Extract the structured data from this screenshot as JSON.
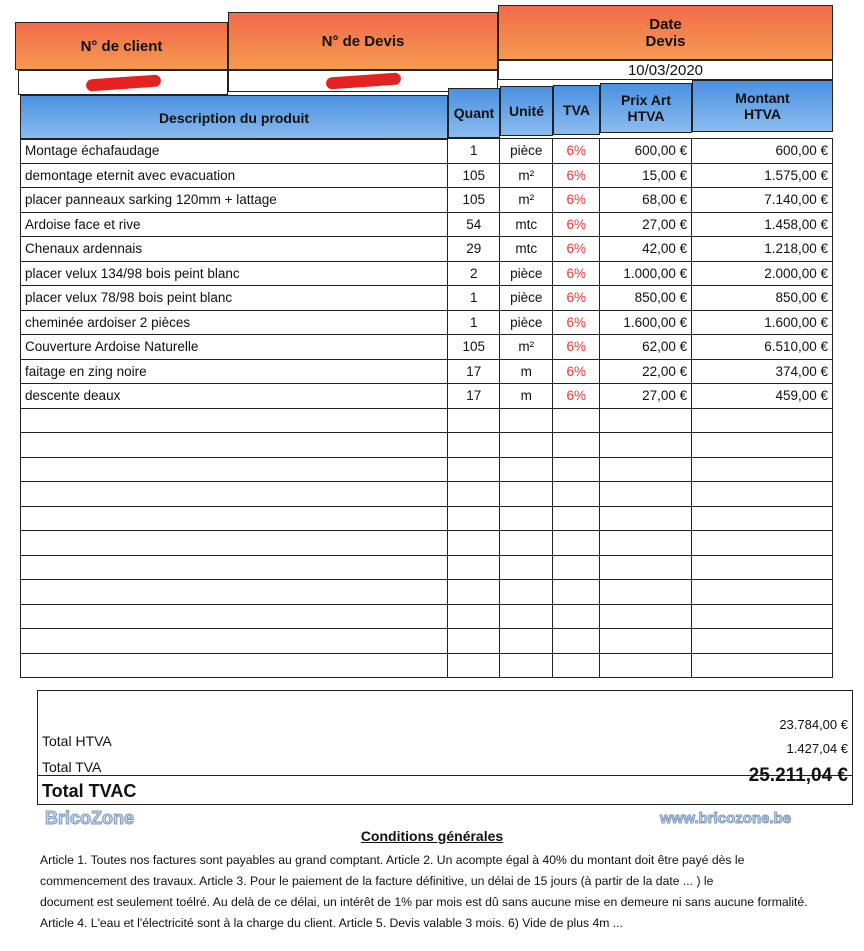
{
  "header": {
    "client_label": "N° de client",
    "devis_label": "N° de Devis",
    "date_label_1": "Date",
    "date_label_2": "Devis",
    "date_value": "10/03/2020"
  },
  "columns": {
    "description": "Description du produit",
    "quant": "Quant",
    "unite": "Unité",
    "tva": "TVA",
    "prix_1": "Prix Art",
    "prix_2": "HTVA",
    "montant_1": "Montant",
    "montant_2": "HTVA"
  },
  "items": [
    {
      "desc": "Montage échafaudage",
      "quant": "1",
      "unite": "pièce",
      "tva": "6%",
      "prix": "600,00 €",
      "montant": "600,00 €"
    },
    {
      "desc": "demontage eternit avec evacuation",
      "quant": "105",
      "unite": "m²",
      "tva": "6%",
      "prix": "15,00 €",
      "montant": "1.575,00 €"
    },
    {
      "desc": "placer panneaux sarking 120mm + lattage",
      "quant": "105",
      "unite": "m²",
      "tva": "6%",
      "prix": "68,00 €",
      "montant": "7.140,00 €"
    },
    {
      "desc": "Ardoise face et rive",
      "quant": "54",
      "unite": "mtc",
      "tva": "6%",
      "prix": "27,00 €",
      "montant": "1.458,00 €"
    },
    {
      "desc": "Chenaux ardennais",
      "quant": "29",
      "unite": "mtc",
      "tva": "6%",
      "prix": "42,00 €",
      "montant": "1.218,00 €"
    },
    {
      "desc": "placer velux 134/98 bois peint blanc",
      "quant": "2",
      "unite": "pièce",
      "tva": "6%",
      "prix": "1.000,00 €",
      "montant": "2.000,00 €"
    },
    {
      "desc": "placer velux 78/98 bois peint blanc",
      "quant": "1",
      "unite": "pièce",
      "tva": "6%",
      "prix": "850,00 €",
      "montant": "850,00 €"
    },
    {
      "desc": "cheminée ardoiser 2 pièces",
      "quant": "1",
      "unite": "pièce",
      "tva": "6%",
      "prix": "1.600,00 €",
      "montant": "1.600,00 €"
    },
    {
      "desc": "Couverture Ardoise Naturelle",
      "quant": "105",
      "unite": "m²",
      "tva": "6%",
      "prix": "62,00 €",
      "montant": "6.510,00 €"
    },
    {
      "desc": "faitage en zing noire",
      "quant": "17",
      "unite": "m",
      "tva": "6%",
      "prix": "22,00 €",
      "montant": "374,00 €"
    },
    {
      "desc": "descente deaux",
      "quant": "17",
      "unite": "m",
      "tva": "6%",
      "prix": "27,00 €",
      "montant": "459,00 €"
    }
  ],
  "totals": {
    "htva_label": "Total HTVA",
    "htva": "23.784,00 €",
    "tva_label": "Total TVA",
    "tva": "1.427,04 €",
    "tvac_label": "Total TVAC",
    "tvac": "25.211,04 €"
  },
  "conditions": {
    "title": "Conditions générales",
    "lines": [
      "Article 1. Toutes nos factures sont payables au grand comptant. Article 2. Un acompte égal à 40% du montant doit être payé dès le",
      "commencement des travaux. Article 3. Pour le paiement de la facture définitive, un délai de 15 jours (à partir de la date ... ) le",
      "document est seulement toélré. Au delà de ce délai, un intérêt de 1% par mois est dû sans aucune mise en demeure ni sans aucune formalité.",
      "Article 4. L'eau et l'électricité sont à la charge du client. Article 5. Devis valable 3 mois. 6) Vide de plus 4m ..."
    ]
  },
  "watermark": {
    "name": "BricoZone",
    "url": "www.bricozone.be"
  },
  "colors": {
    "header_orange": "#f36a4a",
    "header_blue": "#4a90e0",
    "tva_red": "#e33333"
  }
}
